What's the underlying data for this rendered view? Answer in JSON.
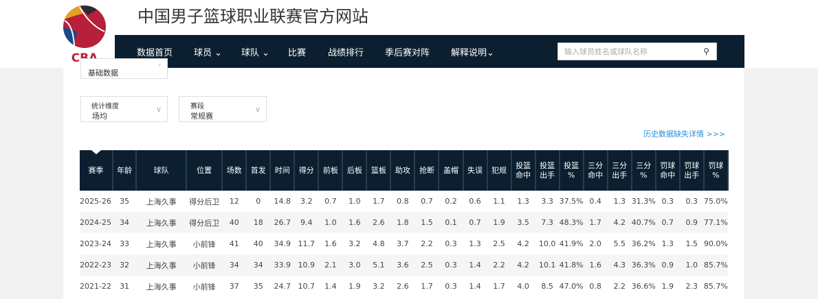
{
  "header": {
    "title": "中国男子篮球职业联赛官方网站",
    "logo_text": "CBA"
  },
  "nav": {
    "items": [
      "数据首页",
      "球员",
      "球队",
      "比赛",
      "战绩排行",
      "季后赛对阵",
      "解释说明"
    ],
    "search_placeholder": "输入球员姓名或球队名称"
  },
  "filters": {
    "data_type": "基础数据",
    "dimension_label": "统计维度",
    "dimension_value": "场均",
    "stage_label": "赛段",
    "stage_value": "常规赛"
  },
  "history_link": "历史数据缺失详情 >>>",
  "colors": {
    "nav": "#0b1f30",
    "link": "#2a8fd8"
  },
  "table": {
    "headers": [
      [
        "赛季"
      ],
      [
        "年龄"
      ],
      [
        "球队"
      ],
      [
        "位置"
      ],
      [
        "场数"
      ],
      [
        "首发"
      ],
      [
        "时间"
      ],
      [
        "得分"
      ],
      [
        "前板"
      ],
      [
        "后板"
      ],
      [
        "篮板"
      ],
      [
        "助攻"
      ],
      [
        "抢断"
      ],
      [
        "盖帽"
      ],
      [
        "失误"
      ],
      [
        "犯规"
      ],
      [
        "投篮",
        "命中"
      ],
      [
        "投篮",
        "出手"
      ],
      [
        "投篮",
        "%"
      ],
      [
        "三分",
        "命中"
      ],
      [
        "三分",
        "出手"
      ],
      [
        "三分",
        "%"
      ],
      [
        "罚球",
        "命中"
      ],
      [
        "罚球",
        "出手"
      ],
      [
        "罚球",
        "%"
      ]
    ],
    "rows": [
      [
        "2025-26",
        "35",
        "上海久事",
        "得分后卫",
        "12",
        "0",
        "14.8",
        "3.2",
        "0.7",
        "1.0",
        "1.7",
        "0.8",
        "0.7",
        "0.2",
        "0.6",
        "1.1",
        "1.3",
        "3.3",
        "37.5%",
        "0.4",
        "1.3",
        "31.3%",
        "0.3",
        "0.3",
        "75.0%"
      ],
      [
        "2024-25",
        "34",
        "上海久事",
        "得分后卫",
        "40",
        "18",
        "26.7",
        "9.4",
        "1.0",
        "1.6",
        "2.6",
        "1.8",
        "1.5",
        "0.1",
        "0.7",
        "1.9",
        "3.5",
        "7.3",
        "48.3%",
        "1.7",
        "4.2",
        "40.7%",
        "0.7",
        "0.9",
        "77.1%"
      ],
      [
        "2023-24",
        "33",
        "上海久事",
        "小前锋",
        "41",
        "40",
        "34.9",
        "11.7",
        "1.6",
        "3.2",
        "4.8",
        "3.7",
        "2.2",
        "0.3",
        "1.3",
        "2.5",
        "4.2",
        "10.0",
        "41.9%",
        "2.0",
        "5.5",
        "36.2%",
        "1.3",
        "1.5",
        "90.0%"
      ],
      [
        "2022-23",
        "32",
        "上海久事",
        "小前锋",
        "34",
        "34",
        "33.9",
        "10.9",
        "2.1",
        "3.0",
        "5.1",
        "3.6",
        "2.5",
        "0.3",
        "1.4",
        "2.2",
        "4.2",
        "10.1",
        "41.8%",
        "1.6",
        "4.3",
        "36.3%",
        "0.9",
        "1.0",
        "85.7%"
      ],
      [
        "2021-22",
        "31",
        "上海久事",
        "小前锋",
        "37",
        "35",
        "24.7",
        "10.7",
        "1.4",
        "1.9",
        "3.2",
        "2.6",
        "1.7",
        "0.3",
        "1.4",
        "1.7",
        "4.0",
        "8.5",
        "47.0%",
        "0.8",
        "2.2",
        "36.6%",
        "1.9",
        "2.3",
        "85.7%"
      ]
    ]
  }
}
